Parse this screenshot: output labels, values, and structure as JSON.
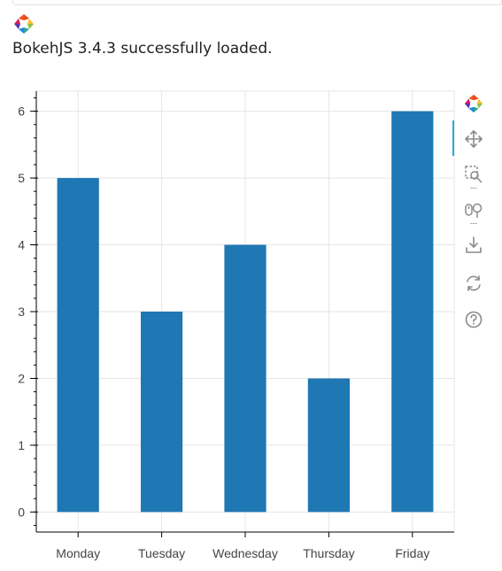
{
  "notebook": {
    "status_text": "BokehJS 3.4.3 successfully loaded."
  },
  "toolbar": {
    "tools": [
      {
        "name": "bokeh-logo-icon",
        "active": false
      },
      {
        "name": "pan-icon",
        "active": true
      },
      {
        "name": "box-zoom-icon",
        "active": false
      },
      {
        "name": "wheel-zoom-icon",
        "active": false
      },
      {
        "name": "save-icon",
        "active": false
      },
      {
        "name": "reset-icon",
        "active": false
      },
      {
        "name": "help-icon",
        "active": false
      }
    ]
  },
  "colors": {
    "bar": "#1f77b4",
    "grid": "#e5e5e5",
    "axis": "#000000",
    "toolbar_active": "#26aae1"
  },
  "chart_data": {
    "type": "bar",
    "title": "",
    "xlabel": "",
    "ylabel": "",
    "categories": [
      "Monday",
      "Tuesday",
      "Wednesday",
      "Thursday",
      "Friday"
    ],
    "values": [
      5,
      3,
      4,
      2,
      6
    ],
    "ylim": [
      -0.3,
      6.3
    ],
    "yticks": [
      0,
      1,
      2,
      3,
      4,
      5,
      6
    ],
    "grid": true,
    "legend": "none"
  }
}
